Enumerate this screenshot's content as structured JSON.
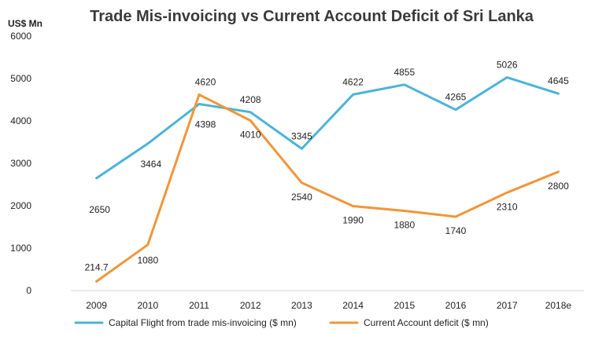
{
  "chart_data": {
    "type": "line",
    "title": "Trade Mis-invoicing vs Current Account Deficit of Sri Lanka",
    "unit_label": "US$ Mn",
    "categories": [
      "2009",
      "2010",
      "2011",
      "2012",
      "2013",
      "2014",
      "2015",
      "2016",
      "2017",
      "2018e"
    ],
    "y_ticks": [
      "0",
      "1000",
      "2000",
      "3000",
      "4000",
      "5000",
      "6000"
    ],
    "ylim": [
      0,
      6000
    ],
    "grid": false,
    "legend_position": "bottom",
    "series": [
      {
        "name": "Capital Flight from trade mis-invoicing ($ mn)",
        "color": "#4BB3D8",
        "values": [
          2650,
          3464,
          4398,
          4208,
          3345,
          4622,
          4855,
          4265,
          5026,
          4645
        ],
        "labels": [
          "2650",
          "3464",
          "4398",
          "4208",
          "3345",
          "4622",
          "4855",
          "4265",
          "5026",
          "4645"
        ]
      },
      {
        "name": "Current Account deficit ($ mn)",
        "color": "#F0963A",
        "values": [
          214.7,
          1080,
          4620,
          4010,
          2540,
          1990,
          1880,
          1740,
          2310,
          2800
        ],
        "labels": [
          "214.7",
          "1080",
          "4620",
          "4010",
          "2540",
          "1990",
          "1880",
          "1740",
          "2310",
          "2800"
        ]
      }
    ]
  }
}
